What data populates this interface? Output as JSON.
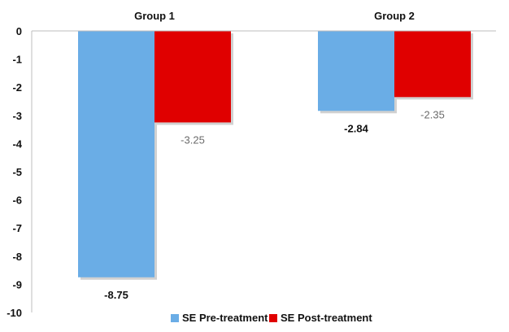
{
  "chart_data": {
    "type": "bar",
    "categories": [
      "Group 1",
      "Group 2"
    ],
    "series": [
      {
        "name": "SE Pre-treatment",
        "values": [
          -8.75,
          -2.84
        ],
        "color": "#6aade6",
        "value_labels": [
          "-8.75",
          "-2.84"
        ],
        "label_style": "bold"
      },
      {
        "name": "SE Post-treatment",
        "values": [
          -3.25,
          -2.35
        ],
        "color": "#e00000",
        "value_labels": [
          "-3.25",
          "-2.35"
        ],
        "label_style": "normal"
      }
    ],
    "ylim": [
      -10,
      0
    ],
    "yticks": [
      "0",
      "-1",
      "-2",
      "-3",
      "-4",
      "-5",
      "-6",
      "-7",
      "-8",
      "-9",
      "-10"
    ],
    "title": "",
    "xlabel": "",
    "ylabel": "",
    "category_axis_position": "top",
    "legend_position": "bottom-center",
    "grid": false
  }
}
